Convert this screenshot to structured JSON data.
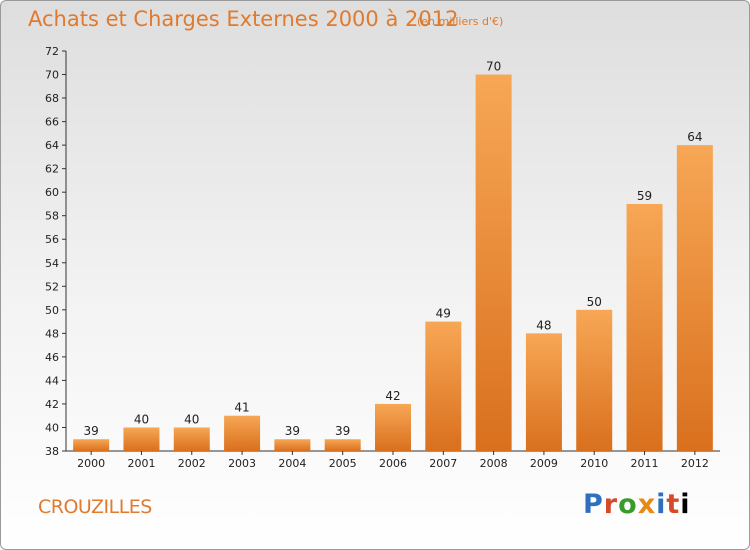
{
  "header": {
    "title": "Achats et Charges Externes 2000 à 2012",
    "subtitle": "(en milliers d'€)"
  },
  "footer": {
    "town": "CROUZILLES",
    "logo_letters": [
      "P",
      "r",
      "o",
      "x",
      "i",
      "t",
      "i"
    ]
  },
  "colors": {
    "accent": "#e07a2e",
    "bar_top": "#f7a755",
    "bar_bottom": "#d9701e"
  },
  "chart_data": {
    "type": "bar",
    "title": "Achats et Charges Externes 2000 à 2012",
    "subtitle": "(en milliers d'€)",
    "categories": [
      "2000",
      "2001",
      "2002",
      "2003",
      "2004",
      "2005",
      "2006",
      "2007",
      "2008",
      "2009",
      "2010",
      "2011",
      "2012"
    ],
    "values": [
      39,
      40,
      40,
      41,
      39,
      39,
      42,
      49,
      70,
      48,
      50,
      59,
      64
    ],
    "ylim": [
      38,
      72
    ],
    "yticks": [
      38,
      40,
      42,
      44,
      46,
      48,
      50,
      52,
      54,
      56,
      58,
      60,
      62,
      64,
      66,
      68,
      70,
      72
    ],
    "grid": false,
    "legend": "none"
  }
}
